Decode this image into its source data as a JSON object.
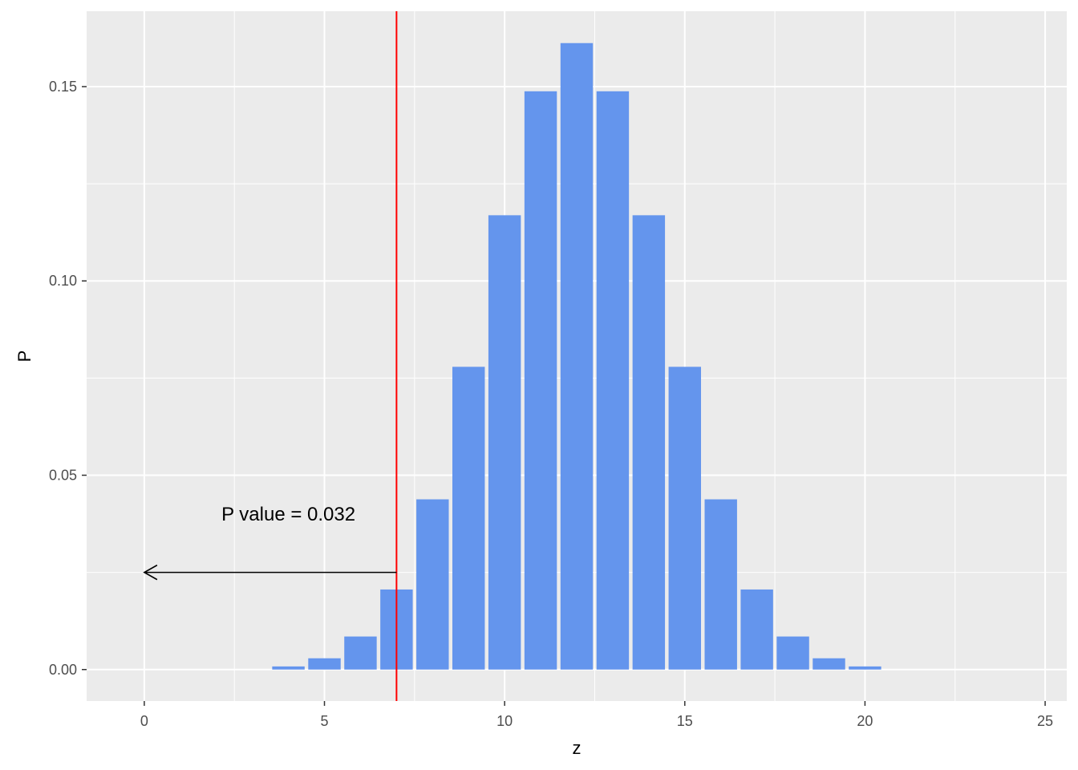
{
  "chart_data": {
    "type": "bar",
    "xlabel": "z",
    "ylabel": "P",
    "xlim": [
      -1.6,
      25.6
    ],
    "ylim": [
      -0.0081,
      0.1694
    ],
    "x_ticks": [
      0,
      5,
      10,
      15,
      20,
      25
    ],
    "x_tick_labels": [
      "0",
      "5",
      "10",
      "15",
      "20",
      "25"
    ],
    "y_ticks": [
      0,
      0.05,
      0.1,
      0.15
    ],
    "y_tick_labels": [
      "0.00",
      "0.05",
      "0.10",
      "0.15"
    ],
    "grid": true,
    "x": [
      4,
      5,
      6,
      7,
      8,
      9,
      10,
      11,
      12,
      13,
      14,
      15,
      16,
      17,
      18,
      19,
      20
    ],
    "values": [
      0.0008,
      0.0029,
      0.0085,
      0.0206,
      0.0438,
      0.0779,
      0.1169,
      0.1488,
      0.1612,
      0.1488,
      0.1169,
      0.0779,
      0.0438,
      0.0206,
      0.0085,
      0.0029,
      0.0008
    ],
    "bar_color": "#6495ED",
    "vline": {
      "x": 7,
      "color": "#FF0000"
    },
    "arrow": {
      "x_from": 7,
      "x_to": 0,
      "y": 0.025,
      "color": "#000000"
    },
    "annotation": {
      "text": "P value = 0.032",
      "x": 4,
      "y": 0.04
    },
    "colors": {
      "panel": "#EBEBEB",
      "grid": "#FFFFFF"
    }
  }
}
